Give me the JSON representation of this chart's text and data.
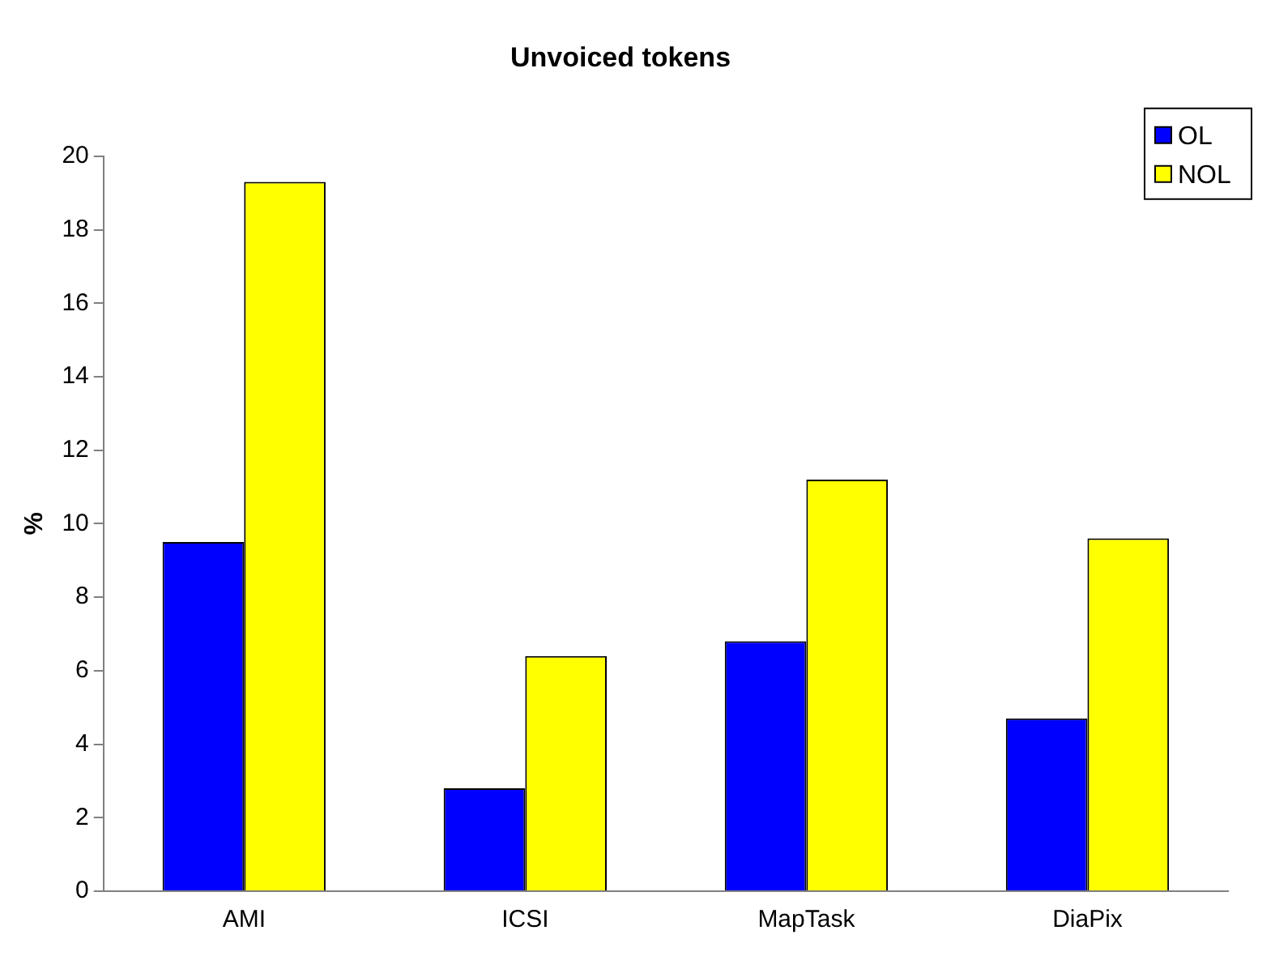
{
  "chart_data": {
    "type": "bar",
    "title": "Unvoiced tokens",
    "ylabel": "%",
    "categories": [
      "AMI",
      "ICSI",
      "MapTask",
      "DiaPix"
    ],
    "series": [
      {
        "name": "OL",
        "color": "#0000ff",
        "values": [
          9.5,
          2.8,
          6.8,
          4.7
        ]
      },
      {
        "name": "NOL",
        "color": "#ffff00",
        "values": [
          19.3,
          6.4,
          11.2,
          9.6
        ]
      }
    ],
    "ylim": [
      0,
      20
    ],
    "yticks": [
      0,
      2,
      4,
      6,
      8,
      10,
      12,
      14,
      16,
      18,
      20
    ],
    "grid": false,
    "legend": "top right"
  }
}
